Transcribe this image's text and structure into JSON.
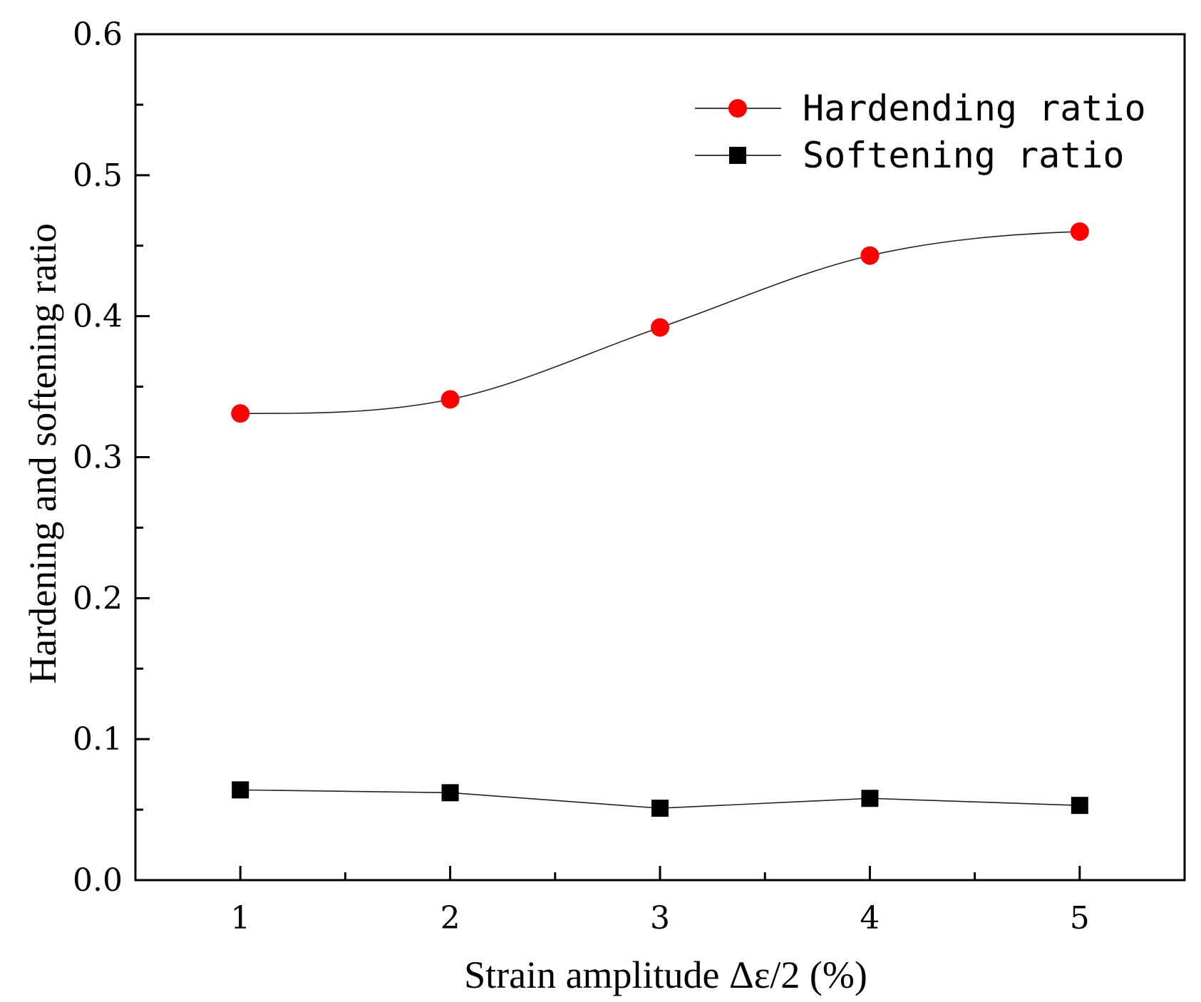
{
  "chart_data": {
    "type": "line",
    "title": "",
    "xlabel": "Strain amplitude  Δε/2 (%)",
    "ylabel": "Hardening and softening ratio",
    "x": [
      1,
      2,
      3,
      4,
      5
    ],
    "xlim": [
      0.5,
      5.5
    ],
    "ylim": [
      0.0,
      0.6
    ],
    "xticks": [
      1,
      2,
      3,
      4,
      5
    ],
    "xtick_labels": [
      "1",
      "2",
      "3",
      "4",
      "5"
    ],
    "yticks": [
      0.0,
      0.1,
      0.2,
      0.3,
      0.4,
      0.5,
      0.6
    ],
    "ytick_labels": [
      "0.0",
      "0.1",
      "0.2",
      "0.3",
      "0.4",
      "0.5",
      "0.6"
    ],
    "grid": false,
    "legend_position": "top-right",
    "series": [
      {
        "name": "Hardending ratio",
        "marker": "circle",
        "color": "#ff0000",
        "line": "smooth",
        "values": [
          0.331,
          0.341,
          0.392,
          0.443,
          0.46
        ]
      },
      {
        "name": "Softening ratio",
        "marker": "square",
        "color": "#000000",
        "line": "straight",
        "values": [
          0.064,
          0.062,
          0.051,
          0.058,
          0.053
        ]
      }
    ]
  }
}
